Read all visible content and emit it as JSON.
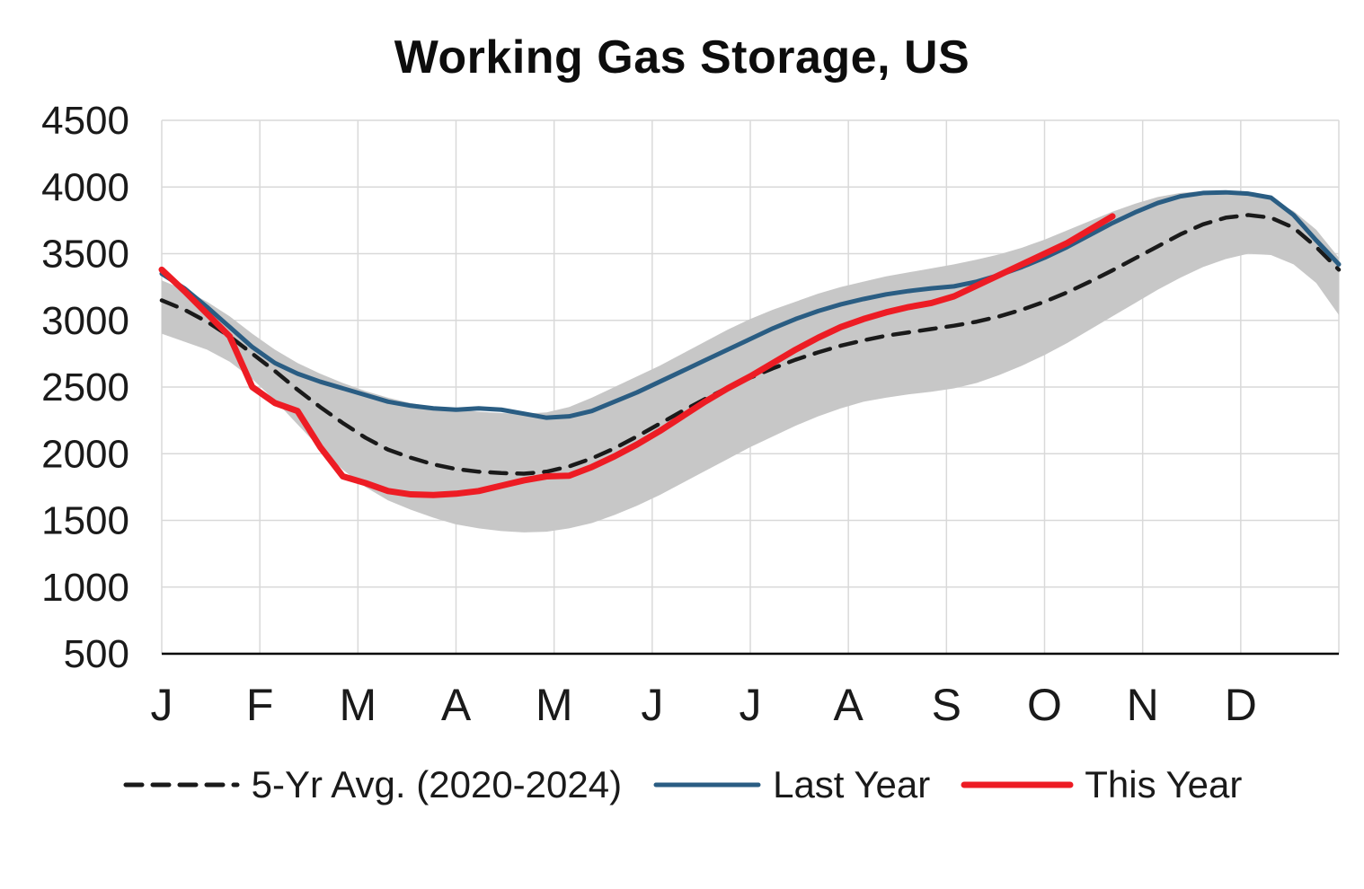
{
  "title": "Working Gas Storage, US",
  "chart_data": {
    "type": "line",
    "title": "Working Gas Storage, US",
    "xlabel": "",
    "ylabel": "",
    "x_unit": "weeks",
    "x_weeks": 52,
    "x_tick_labels": [
      "J",
      "F",
      "M",
      "A",
      "M",
      "J",
      "J",
      "A",
      "S",
      "O",
      "N",
      "D"
    ],
    "ylim": [
      500,
      4500
    ],
    "y_ticks": [
      500,
      1000,
      1500,
      2000,
      2500,
      3000,
      3500,
      4000,
      4500
    ],
    "grid": true,
    "legend_position": "bottom",
    "colors": {
      "grid": "#d9d9d9",
      "axis": "#000000",
      "text": "#1a1a1a",
      "background": "#ffffff"
    },
    "band": {
      "name": "5-year min-max range",
      "color": "#c7c7c7",
      "upper": [
        3300,
        3230,
        3140,
        3030,
        2900,
        2780,
        2680,
        2600,
        2530,
        2470,
        2420,
        2380,
        2350,
        2330,
        2315,
        2305,
        2300,
        2310,
        2350,
        2420,
        2500,
        2580,
        2660,
        2750,
        2840,
        2930,
        3010,
        3080,
        3140,
        3200,
        3250,
        3290,
        3330,
        3360,
        3390,
        3420,
        3455,
        3495,
        3545,
        3605,
        3675,
        3745,
        3815,
        3875,
        3925,
        3955,
        3970,
        3965,
        3945,
        3905,
        3820,
        3680,
        3470
      ],
      "lower": [
        2900,
        2840,
        2780,
        2690,
        2560,
        2400,
        2220,
        2040,
        1880,
        1750,
        1650,
        1580,
        1520,
        1470,
        1440,
        1420,
        1410,
        1415,
        1440,
        1480,
        1540,
        1610,
        1690,
        1780,
        1870,
        1960,
        2050,
        2130,
        2210,
        2280,
        2340,
        2390,
        2420,
        2445,
        2465,
        2490,
        2530,
        2590,
        2660,
        2740,
        2830,
        2930,
        3030,
        3130,
        3230,
        3320,
        3400,
        3460,
        3500,
        3490,
        3420,
        3280,
        3040
      ]
    },
    "series": [
      {
        "name": "5-Yr Avg. (2020-2024)",
        "color": "#1a1a1a",
        "width": 4.5,
        "dash": "18 12",
        "values": [
          3150,
          3080,
          2990,
          2880,
          2750,
          2620,
          2480,
          2350,
          2230,
          2120,
          2030,
          1970,
          1920,
          1885,
          1865,
          1855,
          1850,
          1865,
          1905,
          1965,
          2040,
          2130,
          2225,
          2320,
          2410,
          2495,
          2570,
          2640,
          2705,
          2760,
          2810,
          2850,
          2885,
          2910,
          2935,
          2960,
          2990,
          3030,
          3080,
          3140,
          3210,
          3290,
          3375,
          3465,
          3555,
          3645,
          3720,
          3770,
          3790,
          3770,
          3695,
          3550,
          3380
        ]
      },
      {
        "name": "Last Year",
        "color": "#2a5d83",
        "width": 5,
        "values": [
          3350,
          3240,
          3100,
          2950,
          2800,
          2680,
          2600,
          2540,
          2490,
          2440,
          2390,
          2360,
          2340,
          2330,
          2340,
          2330,
          2300,
          2270,
          2280,
          2320,
          2390,
          2460,
          2540,
          2620,
          2700,
          2780,
          2860,
          2940,
          3010,
          3070,
          3120,
          3160,
          3195,
          3220,
          3240,
          3255,
          3290,
          3340,
          3400,
          3470,
          3550,
          3640,
          3730,
          3810,
          3880,
          3930,
          3955,
          3960,
          3950,
          3920,
          3790,
          3600,
          3420
        ]
      },
      {
        "name": "This Year",
        "color": "#ed1c24",
        "width": 7,
        "values": [
          3380,
          3220,
          3050,
          2880,
          2500,
          2380,
          2320,
          2050,
          1830,
          1780,
          1720,
          1695,
          1690,
          1700,
          1720,
          1760,
          1800,
          1830,
          1835,
          1900,
          1980,
          2070,
          2170,
          2280,
          2390,
          2490,
          2580,
          2680,
          2780,
          2870,
          2950,
          3010,
          3060,
          3100,
          3130,
          3180,
          3260,
          3340,
          3420,
          3500,
          3580,
          3680,
          3780
        ]
      }
    ]
  }
}
